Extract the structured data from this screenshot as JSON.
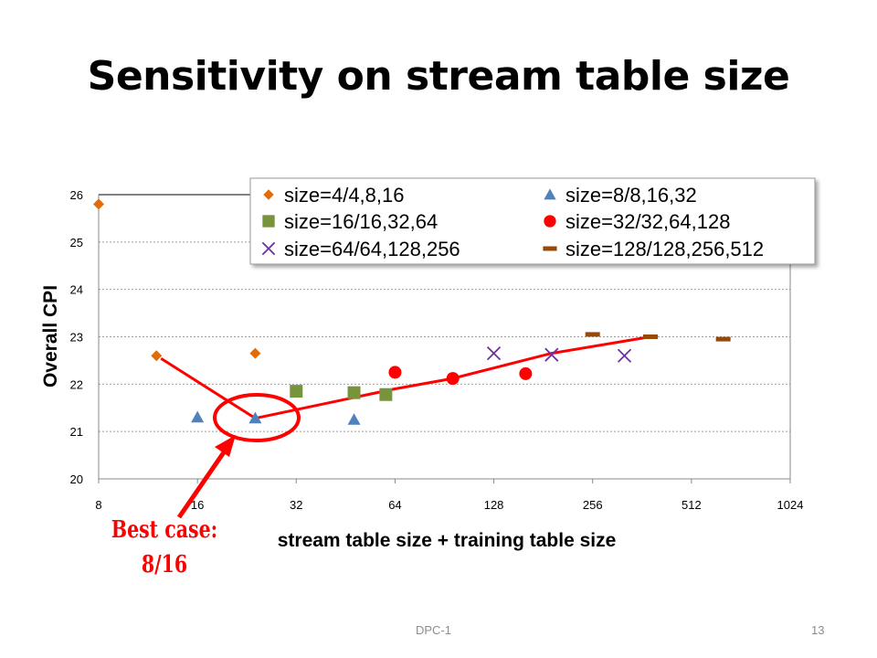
{
  "slide": {
    "title": "Sensitivity on stream table size",
    "footer_center": "DPC-1",
    "page_number": "13"
  },
  "colors": {
    "orange": "#e36c09",
    "blue": "#4f81bd",
    "green": "#77933c",
    "red": "#ff0000",
    "purple": "#7030a0",
    "brown": "#984807",
    "annotation": "#ff0000"
  },
  "annotation": {
    "line1": "Best case:",
    "line2": "8/16"
  },
  "chart_data": {
    "type": "scatter",
    "xlabel": "stream table size + training table size",
    "ylabel": "Overall CPI",
    "x_scale": "log2",
    "xlim": [
      8,
      1024
    ],
    "ylim": [
      20,
      26
    ],
    "x_ticks": [
      8,
      16,
      32,
      64,
      128,
      256,
      512,
      1024
    ],
    "y_ticks": [
      20,
      21,
      22,
      23,
      24,
      25,
      26
    ],
    "grid": "horizontal-dashed",
    "legend_position": "top-right",
    "series": [
      {
        "name": "size=4/4,8,16",
        "marker": "diamond",
        "color": "#e36c09",
        "points": [
          [
            8,
            25.8
          ],
          [
            12,
            22.6
          ],
          [
            24,
            22.65
          ]
        ]
      },
      {
        "name": "size=8/8,16,32",
        "marker": "triangle",
        "color": "#4f81bd",
        "points": [
          [
            16,
            21.3
          ],
          [
            24,
            21.28
          ],
          [
            48,
            21.25
          ]
        ]
      },
      {
        "name": "size=16/16,32,64",
        "marker": "square",
        "color": "#77933c",
        "points": [
          [
            32,
            21.85
          ],
          [
            48,
            21.82
          ],
          [
            60,
            21.78
          ]
        ]
      },
      {
        "name": "size=32/32,64,128",
        "marker": "circle",
        "color": "#ff0000",
        "points": [
          [
            64,
            22.25
          ],
          [
            96,
            22.12
          ],
          [
            160,
            22.22
          ]
        ]
      },
      {
        "name": "size=64/64,128,256",
        "marker": "x",
        "color": "#7030a0",
        "points": [
          [
            128,
            22.65
          ],
          [
            192,
            22.62
          ],
          [
            320,
            22.6
          ]
        ]
      },
      {
        "name": "size=128/128,256,512",
        "marker": "dash",
        "color": "#984807",
        "points": [
          [
            256,
            23.05
          ],
          [
            384,
            23.0
          ],
          [
            640,
            22.95
          ]
        ]
      }
    ],
    "best_line": {
      "color": "#ff0000",
      "points": [
        [
          24,
          21.28
        ],
        [
          64,
          21.9
        ],
        [
          96,
          22.12
        ],
        [
          192,
          22.65
        ],
        [
          384,
          23.0
        ]
      ]
    }
  }
}
